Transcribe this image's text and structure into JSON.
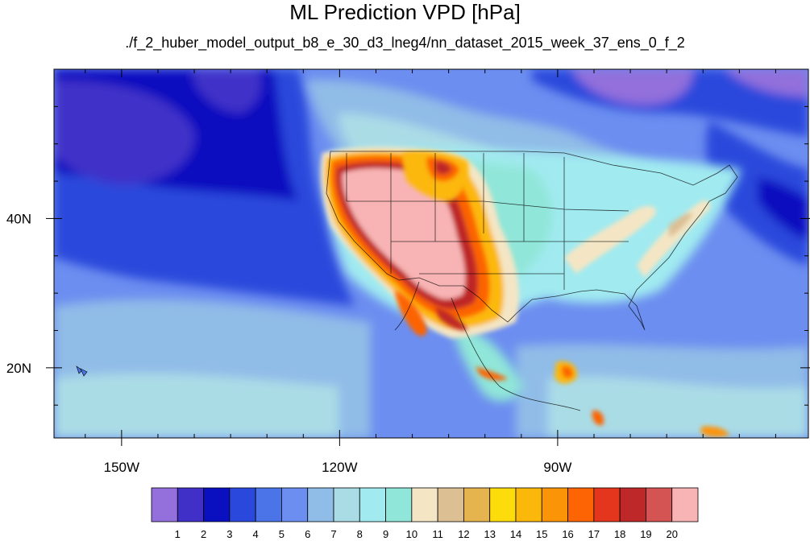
{
  "title": "ML Prediction VPD [hPa]",
  "subtitle": "./f_2_huber_model_output_b8_e_30_d3_lneg4/nn_dataset_2015_week_37_ens_0_f_2",
  "axes": {
    "lon_ticks": [
      {
        "value": -150,
        "label": "150W"
      },
      {
        "value": -120,
        "label": "120W"
      },
      {
        "value": -90,
        "label": "90W"
      }
    ],
    "lat_ticks": [
      {
        "value": 40,
        "label": "40N"
      },
      {
        "value": 20,
        "label": "20N"
      }
    ],
    "lon_range": [
      -159.3,
      -55.5
    ],
    "lat_range": [
      10.6,
      60.0
    ]
  },
  "colorbar": {
    "labels": [
      "1",
      "2",
      "3",
      "4",
      "5",
      "6",
      "7",
      "8",
      "9",
      "10",
      "11",
      "12",
      "13",
      "14",
      "15",
      "16",
      "17",
      "18",
      "19",
      "20"
    ],
    "colors": [
      "#9370db",
      "#4030c8",
      "#0a10c0",
      "#2a48dc",
      "#4a74e8",
      "#6c8ef0",
      "#90bce8",
      "#aadce6",
      "#a0eaf0",
      "#90e6d8",
      "#f4e6c4",
      "#dcc094",
      "#e6b44e",
      "#fcdc0a",
      "#fcb80a",
      "#fc9408",
      "#fc6404",
      "#e4361c",
      "#be2828",
      "#d45454",
      "#f8b4b4"
    ]
  },
  "ocean_colors": {
    "deep_purple": "#4030c8",
    "dark_blue": "#0a10c0",
    "blue": "#2a48dc",
    "medium_blue": "#4a74e8",
    "light_blue": "#6c8ef0",
    "sky": "#90bce8",
    "pale": "#aadce6"
  }
}
